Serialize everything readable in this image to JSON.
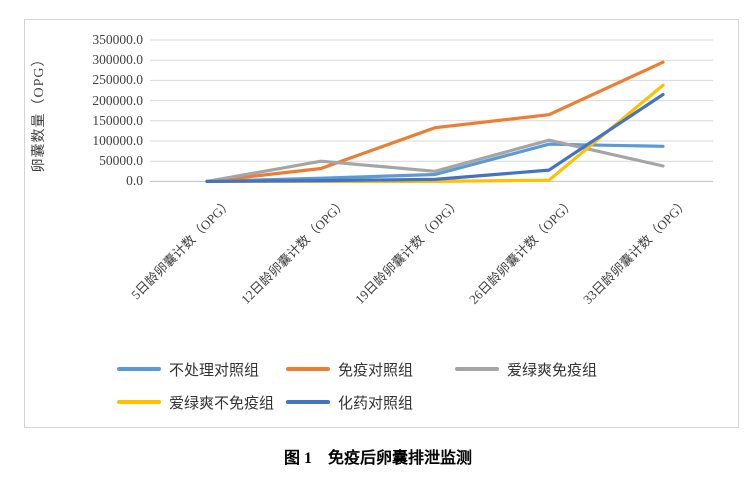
{
  "caption": {
    "text": "图 1　免疫后卵囊排泄监测"
  },
  "colors": {
    "grid": "#d9d9d9",
    "zero_axis": "#bfbfbf",
    "border": "#d4d4d4",
    "axis_text": "#404040"
  },
  "chart_data": {
    "type": "line",
    "title": "",
    "xlabel": "",
    "ylabel": "卵囊数量（OPG）",
    "ylim": [
      0,
      350000
    ],
    "ytick_step": 50000,
    "ytick_labels_top_down": [
      "350000.0",
      "300000.0",
      "250000.0",
      "200000.0",
      "150000.0",
      "100000.0",
      "50000.0",
      "0.0"
    ],
    "grid": true,
    "legend_position": "bottom",
    "categories": [
      "5日龄卵囊计数（OPG）",
      "12日龄卵囊计数（OPG）",
      "19日龄卵囊计数（OPG）",
      "26日龄卵囊计数（OPG）",
      "33日龄卵囊计数（OPG）"
    ],
    "series": [
      {
        "name": "不处理对照组",
        "color": "#5B9BD5",
        "values": [
          0,
          8000,
          17000,
          92000,
          87000
        ]
      },
      {
        "name": "免疫对照组",
        "color": "#ED7D31",
        "values": [
          0,
          32000,
          133000,
          165000,
          295000
        ]
      },
      {
        "name": "爱绿爽免疫组",
        "color": "#A5A5A5",
        "values": [
          0,
          50000,
          25000,
          102000,
          38000
        ]
      },
      {
        "name": "爱绿爽不免疫组",
        "color": "#FFC000",
        "values": [
          0,
          0,
          0,
          3000,
          238000
        ]
      },
      {
        "name": "化药对照组",
        "color": "#4472C4",
        "values": [
          0,
          2000,
          5000,
          28000,
          215000
        ]
      }
    ]
  }
}
